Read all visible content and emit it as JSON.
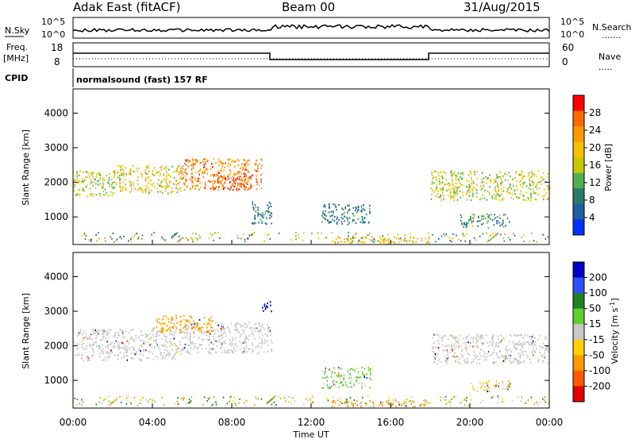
{
  "header": {
    "station": "Adak East (fitACF)",
    "beam": "Beam 00",
    "date": "31/Aug/2015"
  },
  "strip": {
    "nsky_label": "N.Sky",
    "nsky_ticks": [
      "10^5",
      "10^0"
    ],
    "nsearch_label": "N.Search",
    "nsearch_ticks": [
      "10^5",
      "10^0"
    ],
    "freq_label": "Freq.",
    "freq_unit": "[MHz]",
    "freq_ticks": [
      "18",
      "8"
    ],
    "nave_label": "Nave",
    "nave_ticks": [
      "60",
      "0"
    ],
    "cpid_label": "CPID",
    "cpid_text": "normalsound (fast) 157 RF"
  },
  "power_colorbar": {
    "title": "Power [dB]",
    "ticks": [
      "28",
      "24",
      "20",
      "16",
      "12",
      "8",
      "4"
    ],
    "colors": [
      "#ff0000",
      "#ff6a00",
      "#ff9900",
      "#f5c000",
      "#c8c800",
      "#50b050",
      "#2a7a6a",
      "#1e5fa0",
      "#0030ff"
    ]
  },
  "velocity_colorbar": {
    "title": "Velocity [m s^-1]",
    "ticks": [
      "200",
      "100",
      "50",
      "15",
      "-15",
      "-50",
      "-100",
      "-200"
    ],
    "colors": [
      "#0000c8",
      "#3050ff",
      "#208020",
      "#60d030",
      "#c8c8c8",
      "#ffd000",
      "#ff9900",
      "#ff5a00",
      "#e00000"
    ]
  },
  "chart_data": [
    {
      "type": "heatmap",
      "title": "Power",
      "xlabel": "",
      "ylabel": "Slant Range [km]",
      "xlim_hours": [
        0,
        24
      ],
      "ylim_km": [
        200,
        4700
      ],
      "y_ticks": [
        1000,
        2000,
        3000,
        4000
      ],
      "x_tick_labels": [],
      "colorbar_label": "Power [dB]",
      "regions": [
        {
          "t0": 0.0,
          "t1": 2.0,
          "r0": 1600,
          "r1": 2350,
          "value_db": 16
        },
        {
          "t0": 2.0,
          "t1": 5.5,
          "r0": 1700,
          "r1": 2500,
          "value_db": 18
        },
        {
          "t0": 5.5,
          "t1": 9.5,
          "r0": 1800,
          "r1": 2700,
          "value_db": 24
        },
        {
          "t0": 7.0,
          "t1": 9.0,
          "r0": 1800,
          "r1": 2300,
          "value_db": 28
        },
        {
          "t0": 9.0,
          "t1": 10.0,
          "r0": 800,
          "r1": 1500,
          "value_db": 8
        },
        {
          "t0": 12.5,
          "t1": 15.0,
          "r0": 800,
          "r1": 1400,
          "value_db": 8
        },
        {
          "t0": 13.0,
          "t1": 18.0,
          "r0": 250,
          "r1": 450,
          "value_db": 20
        },
        {
          "t0": 18.0,
          "t1": 24.0,
          "r0": 1500,
          "r1": 2350,
          "value_db": 16
        },
        {
          "t0": 19.5,
          "t1": 22.0,
          "r0": 700,
          "r1": 1100,
          "value_db": 10
        }
      ]
    },
    {
      "type": "heatmap",
      "title": "Velocity",
      "xlabel": "Time UT",
      "ylabel": "Slant Range [km]",
      "xlim_hours": [
        0,
        24
      ],
      "ylim_km": [
        200,
        4700
      ],
      "y_ticks": [
        1000,
        2000,
        3000,
        4000
      ],
      "x_tick_labels": [
        "00:00",
        "04:00",
        "08:00",
        "12:00",
        "16:00",
        "20:00",
        "00:00"
      ],
      "colorbar_label": "Velocity [m s^-1]",
      "regions": [
        {
          "t0": 0.0,
          "t1": 5.5,
          "r0": 1600,
          "r1": 2500,
          "value_ms": 0
        },
        {
          "t0": 5.5,
          "t1": 10.0,
          "r0": 1800,
          "r1": 2700,
          "value_ms": 0
        },
        {
          "t0": 4.0,
          "t1": 7.0,
          "r0": 2400,
          "r1": 2900,
          "value_ms": -40
        },
        {
          "t0": 9.5,
          "t1": 10.0,
          "r0": 3000,
          "r1": 3300,
          "value_ms": 200
        },
        {
          "t0": 12.5,
          "t1": 15.0,
          "r0": 800,
          "r1": 1400,
          "value_ms": 20
        },
        {
          "t0": 13.0,
          "t1": 18.0,
          "r0": 250,
          "r1": 450,
          "value_ms": -40
        },
        {
          "t0": 18.0,
          "t1": 24.0,
          "r0": 1500,
          "r1": 2350,
          "value_ms": 0
        },
        {
          "t0": 20.0,
          "t1": 22.0,
          "r0": 700,
          "r1": 1000,
          "value_ms": -20
        }
      ]
    }
  ]
}
